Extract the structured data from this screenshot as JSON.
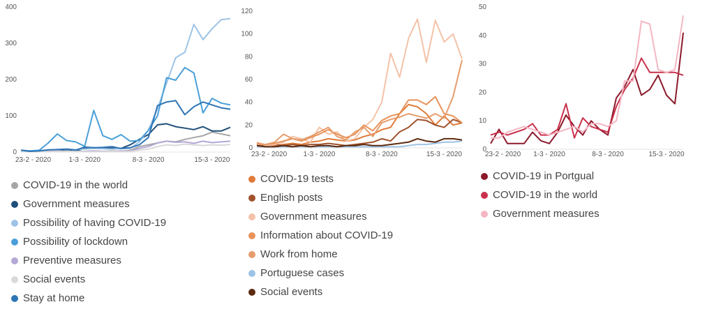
{
  "chart_data": [
    {
      "type": "line",
      "ylim": [
        0,
        400
      ],
      "yticks": [
        0,
        100,
        200,
        300,
        400
      ],
      "xticks": [
        {
          "i": 0,
          "label": "23-2 - 2020"
        },
        {
          "i": 7,
          "label": "1-3 - 2020"
        },
        {
          "i": 14,
          "label": "8-3 - 2020"
        },
        {
          "i": 21,
          "label": "15-3 - 2020"
        }
      ],
      "series": [
        {
          "name": "COVID-19 in the world",
          "color": "#a6a6a6",
          "values": [
            3,
            2,
            3,
            2,
            2,
            3,
            2,
            2,
            3,
            2,
            3,
            2,
            5,
            15,
            20,
            25,
            30,
            28,
            35,
            40,
            45,
            55,
            50,
            45
          ]
        },
        {
          "name": "Government measures",
          "color": "#1f4e79",
          "values": [
            2,
            2,
            3,
            4,
            5,
            3,
            3,
            10,
            12,
            10,
            11,
            10,
            20,
            35,
            48,
            75,
            78,
            70,
            66,
            62,
            70,
            58,
            58,
            68
          ]
        },
        {
          "name": "Possibility of having COVID-19",
          "color": "#9dc3e6",
          "values": [
            5,
            3,
            4,
            6,
            7,
            8,
            7,
            8,
            10,
            9,
            8,
            9,
            10,
            28,
            60,
            120,
            190,
            260,
            275,
            352,
            310,
            340,
            365,
            368
          ]
        },
        {
          "name": "Possibility of lockdown",
          "color": "#4a9fd9",
          "values": [
            5,
            3,
            5,
            25,
            50,
            32,
            28,
            16,
            115,
            45,
            35,
            48,
            30,
            32,
            60,
            100,
            205,
            198,
            233,
            218,
            108,
            148,
            135,
            130
          ]
        },
        {
          "name": "Preventive measures",
          "color": "#b4a7d6",
          "values": [
            2,
            2,
            2,
            3,
            3,
            2,
            2,
            2,
            3,
            2,
            2,
            3,
            3,
            10,
            15,
            25,
            30,
            27,
            28,
            24,
            30,
            26,
            28,
            30
          ]
        },
        {
          "name": "Social events",
          "color": "#d9d9d9",
          "values": [
            1,
            1,
            1,
            1,
            2,
            2,
            2,
            1,
            1,
            1,
            2,
            1,
            2,
            5,
            8,
            15,
            20,
            18,
            22,
            20,
            18,
            20,
            19,
            21
          ]
        },
        {
          "name": "Stay at home",
          "color": "#2e75b6",
          "values": [
            5,
            2,
            3,
            6,
            7,
            8,
            5,
            14,
            12,
            13,
            15,
            10,
            12,
            20,
            40,
            128,
            138,
            142,
            103,
            125,
            138,
            130,
            122,
            118
          ]
        }
      ]
    },
    {
      "type": "line",
      "ylim": [
        0,
        120
      ],
      "yticks": [
        0,
        20,
        40,
        60,
        80,
        100,
        120
      ],
      "xticks": [
        {
          "i": 0,
          "label": "23-2 - 2020"
        },
        {
          "i": 7,
          "label": "1-3 - 2020"
        },
        {
          "i": 14,
          "label": "8-3 - 2020"
        },
        {
          "i": 21,
          "label": "15-3 - 2020"
        }
      ],
      "series": [
        {
          "name": "COVID-19 tests",
          "color": "#e07b39",
          "values": [
            2,
            3,
            2,
            3,
            4,
            3,
            5,
            6,
            8,
            7,
            6,
            7,
            10,
            12,
            16,
            18,
            30,
            38,
            36,
            30,
            20,
            28,
            20,
            22
          ]
        },
        {
          "name": "English posts",
          "color": "#a0522d",
          "values": [
            2,
            2,
            3,
            2,
            3,
            2,
            3,
            3,
            4,
            3,
            2,
            3,
            4,
            5,
            8,
            6,
            14,
            18,
            25,
            24,
            20,
            18,
            25,
            22
          ]
        },
        {
          "name": "Government measures",
          "color": "#f4c2a8",
          "values": [
            5,
            2,
            3,
            5,
            10,
            8,
            5,
            18,
            12,
            14,
            6,
            8,
            18,
            25,
            40,
            83,
            62,
            96,
            113,
            75,
            112,
            93,
            100,
            78
          ]
        },
        {
          "name": "Information about COVID-19",
          "color": "#e8935a",
          "values": [
            4,
            3,
            4,
            6,
            8,
            6,
            9,
            12,
            16,
            12,
            9,
            12,
            20,
            15,
            24,
            28,
            30,
            42,
            42,
            38,
            45,
            30,
            28,
            22
          ]
        },
        {
          "name": "Work from home",
          "color": "#e69c6b",
          "values": [
            3,
            3,
            5,
            12,
            8,
            7,
            10,
            14,
            18,
            10,
            7,
            14,
            18,
            10,
            22,
            25,
            27,
            30,
            28,
            26,
            30,
            26,
            45,
            77
          ]
        },
        {
          "name": "Portuguese cases",
          "color": "#9dc3e6",
          "values": [
            1,
            1,
            1,
            1,
            1,
            1,
            1,
            1,
            1,
            1,
            1,
            1,
            1,
            1,
            1,
            1,
            1,
            2,
            3,
            3,
            4,
            5,
            5,
            6
          ]
        },
        {
          "name": "Social events",
          "color": "#5c2a0f",
          "values": [
            2,
            1,
            1,
            2,
            1,
            2,
            1,
            2,
            2,
            1,
            2,
            2,
            3,
            2,
            2,
            3,
            4,
            5,
            8,
            6,
            5,
            8,
            8,
            7
          ]
        }
      ]
    },
    {
      "type": "line",
      "ylim": [
        0,
        50
      ],
      "yticks": [
        0,
        10,
        20,
        30,
        40,
        50
      ],
      "xticks": [
        {
          "i": 0,
          "label": "23-2 - 2020"
        },
        {
          "i": 7,
          "label": "1-3 - 2020"
        },
        {
          "i": 14,
          "label": "8-3 - 2020"
        },
        {
          "i": 21,
          "label": "15-3 - 2020"
        }
      ],
      "series": [
        {
          "name": "COVID-19 in Portgual",
          "color": "#8b1a2b",
          "values": [
            2,
            7,
            2,
            2,
            2,
            6,
            3,
            2,
            6,
            12,
            8,
            5,
            10,
            7,
            5,
            18,
            22,
            28,
            19,
            21,
            26,
            19,
            16,
            41
          ]
        },
        {
          "name": "COVID-19 in the world",
          "color": "#c9304a",
          "values": [
            5,
            6,
            5,
            6,
            7,
            9,
            5,
            5,
            7,
            16,
            4,
            11,
            8,
            7,
            6,
            15,
            21,
            25,
            32,
            27,
            27,
            27,
            27,
            26
          ]
        },
        {
          "name": "Government measures",
          "color": "#f4b6c2",
          "values": [
            4,
            4,
            6,
            7,
            8,
            7,
            6,
            5,
            6,
            7,
            8,
            6,
            9,
            9,
            8,
            10,
            24,
            24,
            45,
            44,
            28,
            27,
            28,
            47
          ]
        }
      ]
    }
  ]
}
